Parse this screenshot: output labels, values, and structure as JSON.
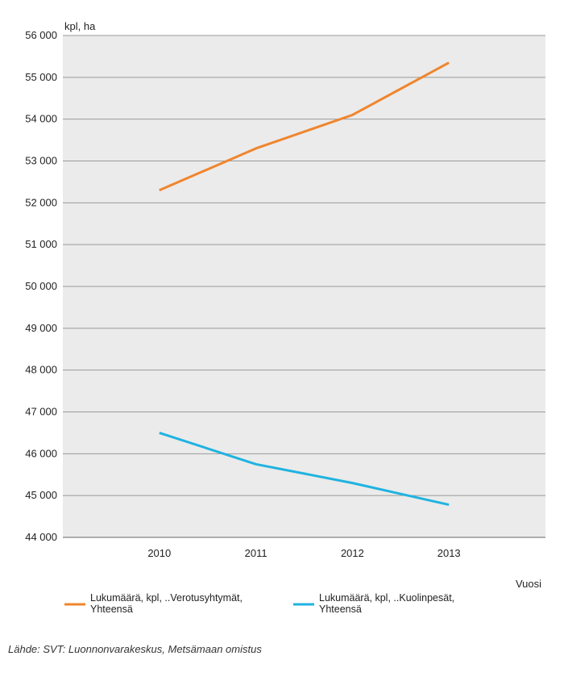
{
  "chart_data": {
    "type": "line",
    "ylabel": "kpl, ha",
    "xlabel": "Vuosi",
    "x": [
      "2010",
      "2011",
      "2012",
      "2013"
    ],
    "xlim": [
      2009,
      2014
    ],
    "ylim": [
      44000,
      56000
    ],
    "yticks": [
      44000,
      45000,
      46000,
      47000,
      48000,
      49000,
      50000,
      51000,
      52000,
      53000,
      54000,
      55000,
      56000
    ],
    "ytick_labels": [
      "44 000",
      "45 000",
      "46 000",
      "47 000",
      "48 000",
      "49 000",
      "50 000",
      "51 000",
      "52 000",
      "53 000",
      "54 000",
      "55 000",
      "56 000"
    ],
    "grid": true,
    "legend_position": "bottom",
    "series": [
      {
        "name": "Lukumäärä, kpl, ..Verotusyhtymät, Yhteensä",
        "name_lines": [
          "Lukumäärä, kpl, ..Verotusyhtymät,",
          "Yhteensä"
        ],
        "color": "#f0852d",
        "values": [
          52300,
          53300,
          54100,
          55350
        ]
      },
      {
        "name": "Lukumäärä, kpl, ..Kuolinpesät, Yhteensä",
        "name_lines": [
          "Lukumäärä, kpl, ..Kuolinpesät,",
          "Yhteensä"
        ],
        "color": "#20b3e0",
        "values": [
          46500,
          45750,
          45300,
          44780
        ]
      }
    ]
  },
  "source": "Lähde: SVT: Luonnonvarakeskus, Metsämaan omistus",
  "colors": {
    "plot_background": "#ebebeb",
    "gridline": "#9a9a9a"
  }
}
